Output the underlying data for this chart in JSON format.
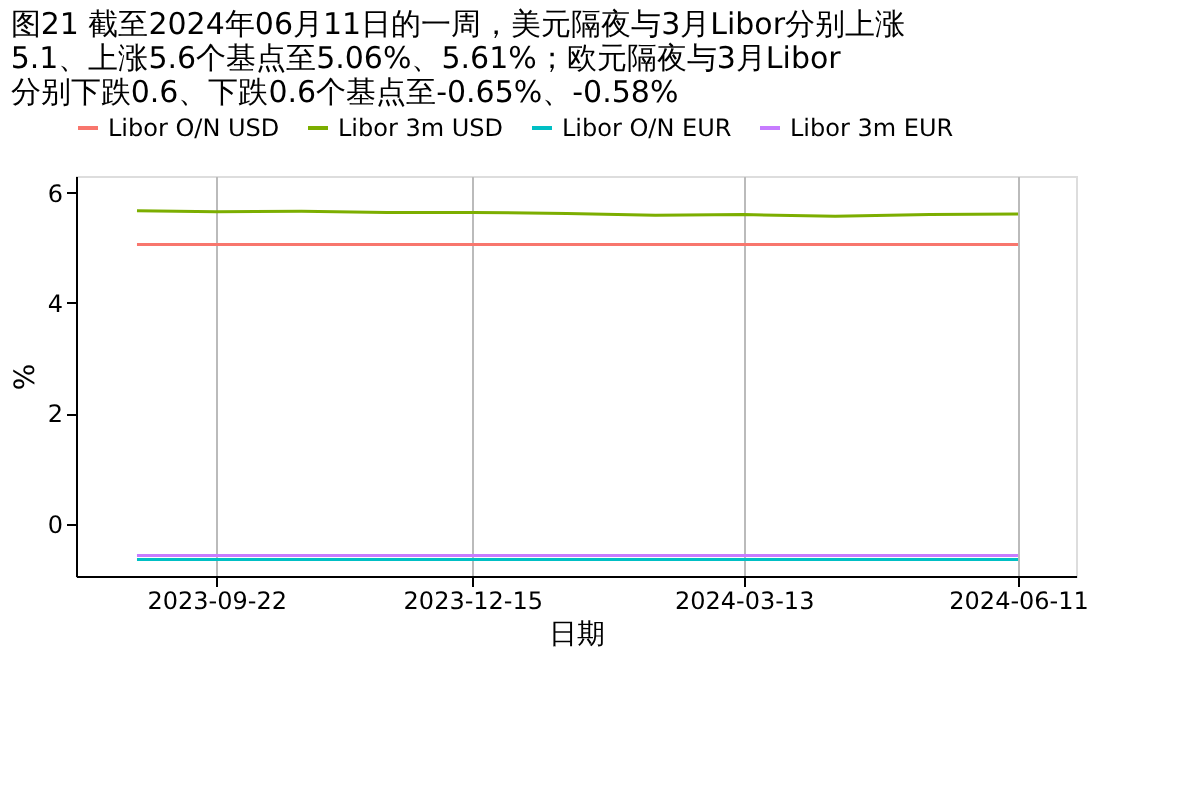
{
  "chart_data": {
    "type": "line",
    "title": "图21  截至2024年06月11日的一周，美元隔夜与3月Libor分别上涨\n5.1、上涨5.6个基点至5.06%、5.61%；欧元隔夜与3月Libor\n分别下跌0.6、下跌0.6个基点至-0.65%、-0.58%",
    "xlabel": "日期",
    "ylabel": "%",
    "x": [
      "2023-08-27",
      "2023-09-22",
      "2023-10-20",
      "2023-11-17",
      "2023-12-15",
      "2024-01-15",
      "2024-02-13",
      "2024-03-13",
      "2024-04-12",
      "2024-05-13",
      "2024-06-11"
    ],
    "series": [
      {
        "name": "Libor O/N USD",
        "color": "#f8766d",
        "values": [
          5.06,
          5.06,
          5.06,
          5.06,
          5.06,
          5.06,
          5.06,
          5.06,
          5.06,
          5.06,
          5.06
        ]
      },
      {
        "name": "Libor 3m USD",
        "color": "#7cae00",
        "values": [
          5.67,
          5.65,
          5.66,
          5.64,
          5.64,
          5.62,
          5.59,
          5.6,
          5.57,
          5.6,
          5.61
        ]
      },
      {
        "name": "Libor O/N EUR",
        "color": "#00bfc4",
        "values": [
          -0.65,
          -0.65,
          -0.65,
          -0.65,
          -0.65,
          -0.65,
          -0.65,
          -0.65,
          -0.65,
          -0.65,
          -0.65
        ]
      },
      {
        "name": "Libor 3m EUR",
        "color": "#c77cff",
        "values": [
          -0.58,
          -0.58,
          -0.58,
          -0.58,
          -0.58,
          -0.58,
          -0.58,
          -0.58,
          -0.58,
          -0.58,
          -0.58
        ]
      }
    ],
    "xlim": [
      "2023-08-07",
      "2024-06-30"
    ],
    "xticks": [
      "2023-09-22",
      "2023-12-15",
      "2024-03-13",
      "2024-06-11"
    ],
    "ylim": [
      -0.95,
      6.3
    ],
    "yticks": [
      0,
      2,
      4,
      6
    ],
    "grid": "x",
    "legend": "top",
    "line_style": "solid",
    "marker": "none"
  }
}
